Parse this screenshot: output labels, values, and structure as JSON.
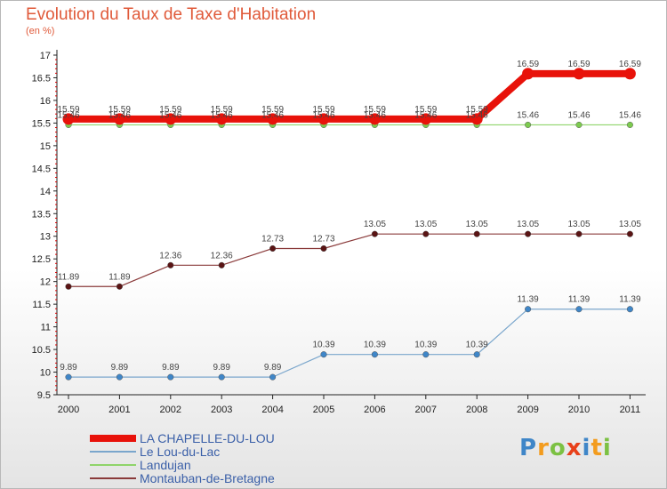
{
  "chart_data": {
    "type": "line",
    "title": "Evolution du Taux de Taxe d'Habitation",
    "subtitle": "(en %)",
    "xlabel": "",
    "ylabel": "",
    "x": [
      "2000",
      "2001",
      "2002",
      "2003",
      "2004",
      "2005",
      "2006",
      "2007",
      "2008",
      "2009",
      "2010",
      "2011"
    ],
    "ylim": [
      9.5,
      17
    ],
    "yticks": [
      "9.5",
      "10",
      "10.5",
      "11",
      "11.5",
      "12",
      "12.5",
      "13",
      "13.5",
      "14",
      "14.5",
      "15",
      "15.5",
      "16",
      "16.5",
      "17"
    ],
    "grid": false,
    "legend_position": "bottom-left",
    "series": [
      {
        "name": "LA CHAPELLE-DU-LOU",
        "color": "#e8120a",
        "emphasis": true,
        "values": [
          15.59,
          15.59,
          15.59,
          15.59,
          15.59,
          15.59,
          15.59,
          15.59,
          15.59,
          16.59,
          16.59,
          16.59
        ],
        "labels": [
          "15.59",
          "15.59",
          "15.59",
          "15.59",
          "15.59",
          "15.59",
          "15.59",
          "15.59",
          "15.59",
          "16.59",
          "16.59",
          "16.59"
        ]
      },
      {
        "name": "Le Lou-du-Lac",
        "color": "#7aa6cc",
        "marker_color": "#3f86c8",
        "values": [
          9.89,
          9.89,
          9.89,
          9.89,
          9.89,
          10.39,
          10.39,
          10.39,
          10.39,
          11.39,
          11.39,
          11.39
        ],
        "labels": [
          "9.89",
          "9.89",
          "9.89",
          "9.89",
          "9.89",
          "10.39",
          "10.39",
          "10.39",
          "10.39",
          "11.39",
          "11.39",
          "11.39"
        ]
      },
      {
        "name": "Landujan",
        "color": "#8fd46a",
        "marker_color": "#7ccb4e",
        "values": [
          15.46,
          15.46,
          15.46,
          15.46,
          15.46,
          15.46,
          15.46,
          15.46,
          15.46,
          15.46,
          15.46,
          15.46
        ],
        "labels": [
          "15.46",
          "15.46",
          "15.46",
          "15.46",
          "15.46",
          "15.46",
          "15.46",
          "15.46",
          "15.46",
          "15.46",
          "15.46",
          "15.46"
        ]
      },
      {
        "name": "Montauban-de-Bretagne",
        "color": "#8a3a3a",
        "marker_color": "#5a1414",
        "values": [
          11.89,
          11.89,
          12.36,
          12.36,
          12.73,
          12.73,
          13.05,
          13.05,
          13.05,
          13.05,
          13.05,
          13.05
        ],
        "labels": [
          "11.89",
          "11.89",
          "12.36",
          "12.36",
          "12.73",
          "12.73",
          "13.05",
          "13.05",
          "13.05",
          "13.05",
          "13.05",
          "13.05"
        ]
      }
    ]
  },
  "brand": {
    "letters": [
      "P",
      "r",
      "o",
      "x",
      "i",
      "t",
      "i"
    ],
    "colors": [
      "#3f86c8",
      "#f39c1e",
      "#7cc143",
      "#e8401a",
      "#3f86c8",
      "#f39c1e",
      "#7cc143"
    ]
  }
}
